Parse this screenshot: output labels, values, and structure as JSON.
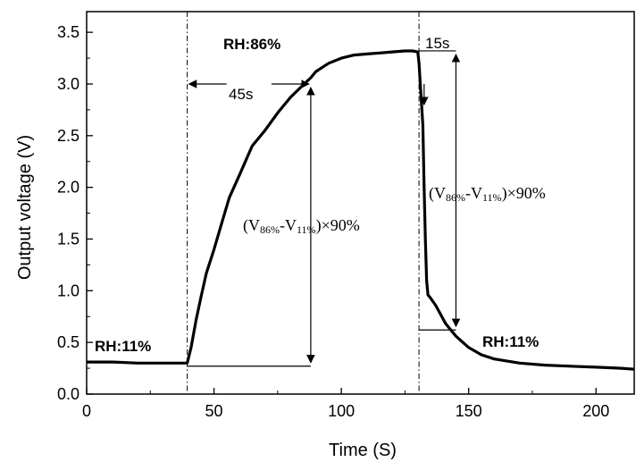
{
  "chart_data": {
    "type": "line",
    "title": "",
    "xlabel": "Time (S)",
    "ylabel": "Output voltage (V)",
    "xlim": [
      0,
      215
    ],
    "ylim": [
      0,
      3.7
    ],
    "xticks": [
      0,
      50,
      100,
      150,
      200
    ],
    "xtick_labels": [
      "0",
      "50",
      "100",
      "150",
      "200"
    ],
    "yticks": [
      0.0,
      0.5,
      1.0,
      1.5,
      2.0,
      2.5,
      3.0,
      3.5
    ],
    "ytick_labels": [
      "0.0",
      "0.5",
      "1.0",
      "1.5",
      "2.0",
      "2.5",
      "3.0",
      "3.5"
    ],
    "grid": false,
    "series": [
      {
        "x": [
          0,
          10,
          20,
          30,
          39.5,
          41,
          43,
          45,
          47,
          50,
          53,
          56,
          60,
          65,
          70,
          75,
          80,
          85,
          88,
          90,
          95,
          100,
          105,
          110,
          115,
          120,
          125,
          128,
          130,
          130.5,
          131,
          132,
          132.5,
          133,
          133.5,
          134,
          135,
          137,
          139,
          141,
          143,
          145,
          150,
          155,
          160,
          170,
          180,
          190,
          200,
          210,
          215
        ],
        "y": [
          0.31,
          0.31,
          0.3,
          0.3,
          0.3,
          0.45,
          0.72,
          0.95,
          1.17,
          1.4,
          1.65,
          1.9,
          2.12,
          2.4,
          2.55,
          2.72,
          2.87,
          2.99,
          3.06,
          3.12,
          3.2,
          3.25,
          3.28,
          3.29,
          3.3,
          3.31,
          3.32,
          3.32,
          3.31,
          3.2,
          3.0,
          2.6,
          2.0,
          1.5,
          1.1,
          0.96,
          0.93,
          0.86,
          0.77,
          0.68,
          0.62,
          0.56,
          0.45,
          0.38,
          0.34,
          0.3,
          0.28,
          0.27,
          0.26,
          0.25,
          0.24
        ]
      }
    ],
    "reference_lines": [
      {
        "orientation": "vertical",
        "x": 39.5,
        "style": "dash-dot"
      },
      {
        "orientation": "vertical",
        "x": 130.5,
        "style": "dash-dot"
      }
    ],
    "annotations": {
      "rh_high": "RH:86%",
      "rh_low_left": "RH:11%",
      "rh_low_right": "RH:11%",
      "rise_time": "45s",
      "fall_time": "15s",
      "formula_left": {
        "open": "(V",
        "sub1": "86%",
        "mid": "-V",
        "sub2": "11%",
        "close": ")",
        "times": "×90%"
      },
      "formula_right": {
        "open": "(V",
        "sub1": "86%",
        "mid": "-V",
        "sub2": "11%",
        "close": ")",
        "times": "×90%"
      }
    },
    "markers": {
      "rise_start_x": 39.5,
      "rise_end_x": 88,
      "rise_level_y": 3.0,
      "rise_base_y": 0.27,
      "fall_start_x": 130.5,
      "fall_end_x": 145,
      "fall_level_y": 3.32,
      "fall_base_y": 0.62
    }
  }
}
